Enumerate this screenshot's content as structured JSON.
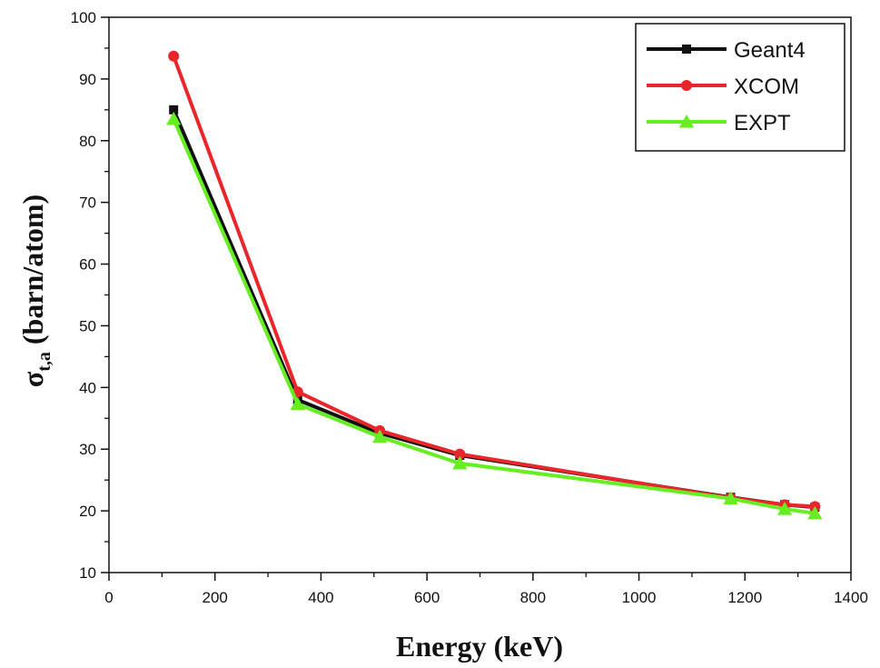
{
  "chart_data": {
    "type": "line",
    "xlabel": "Energy (keV)",
    "ylabel_main": "σ",
    "ylabel_sub": "t,a",
    "ylabel_rest": " (barn/atom)",
    "xlim": [
      0,
      1400
    ],
    "ylim": [
      10,
      100
    ],
    "xticks": [
      0,
      200,
      400,
      600,
      800,
      1000,
      1200,
      1400
    ],
    "yticks": [
      10,
      20,
      30,
      40,
      50,
      60,
      70,
      80,
      90,
      100
    ],
    "x_minor_step": 100,
    "y_minor_step": 5,
    "grid": false,
    "legend_position": "top-right",
    "series": [
      {
        "name": "Geant4",
        "color": "#111111",
        "marker": "square",
        "x": [
          122,
          356,
          511,
          662,
          1173,
          1275,
          1332
        ],
        "y": [
          85.0,
          38.0,
          32.6,
          29.0,
          22.2,
          21.0,
          20.6
        ]
      },
      {
        "name": "XCOM",
        "color": "#e8262b",
        "marker": "circle",
        "x": [
          122,
          356,
          511,
          662,
          1173,
          1275,
          1332
        ],
        "y": [
          93.7,
          39.3,
          33.0,
          29.2,
          22.1,
          21.0,
          20.7
        ]
      },
      {
        "name": "EXPT",
        "color": "#66ee22",
        "marker": "triangle",
        "x": [
          122,
          356,
          511,
          662,
          1173,
          1275,
          1332
        ],
        "y": [
          83.5,
          37.3,
          32.0,
          27.7,
          22.0,
          20.3,
          19.6
        ]
      }
    ]
  }
}
